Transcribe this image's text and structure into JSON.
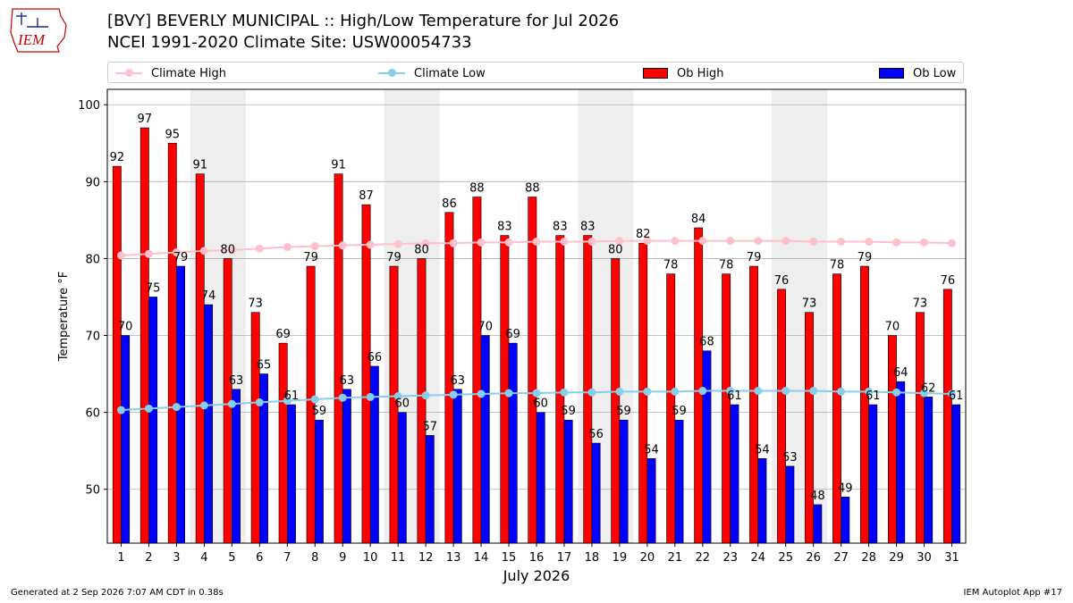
{
  "header": {
    "title_line1": "[BVY] BEVERLY MUNICIPAL :: High/Low Temperature for Jul 2026",
    "title_line2": "NCEI 1991-2020 Climate Site: USW00054733"
  },
  "logo": {
    "text": "IEM",
    "color": "#cc0000"
  },
  "legend": {
    "climate_high": "Climate High",
    "climate_low": "Climate Low",
    "ob_high": "Ob High",
    "ob_low": "Ob Low"
  },
  "footer": {
    "left": "Generated at 2 Sep 2026 7:07 AM CDT in 0.38s",
    "right": "IEM Autoplot App #17"
  },
  "colors": {
    "ob_high": "#ff0000",
    "ob_low": "#0000ff",
    "climate_high": "#ffc0cb",
    "climate_low": "#87ceeb",
    "weekend_band": "#eeeeee",
    "grid": "#b0b0b0"
  },
  "chart_data": {
    "type": "bar",
    "xlabel": "July 2026",
    "ylabel": "Temperature °F",
    "ylim": [
      43,
      102
    ],
    "yticks": [
      50,
      60,
      70,
      80,
      90,
      100
    ],
    "grid": "horizontal",
    "legend_position": "top",
    "categories": [
      1,
      2,
      3,
      4,
      5,
      6,
      7,
      8,
      9,
      10,
      11,
      12,
      13,
      14,
      15,
      16,
      17,
      18,
      19,
      20,
      21,
      22,
      23,
      24,
      25,
      26,
      27,
      28,
      29,
      30,
      31
    ],
    "weekend_bands": [
      [
        4,
        5
      ],
      [
        11,
        12
      ],
      [
        18,
        19
      ],
      [
        25,
        26
      ]
    ],
    "series": [
      {
        "name": "Ob High",
        "kind": "bar",
        "values": [
          92,
          97,
          95,
          91,
          80,
          73,
          69,
          79,
          91,
          87,
          79,
          80,
          86,
          88,
          83,
          88,
          83,
          83,
          80,
          82,
          78,
          84,
          78,
          79,
          76,
          73,
          78,
          79,
          70,
          73,
          76
        ]
      },
      {
        "name": "Ob Low",
        "kind": "bar",
        "values": [
          70,
          75,
          79,
          74,
          63,
          65,
          61,
          59,
          63,
          66,
          60,
          57,
          63,
          70,
          69,
          60,
          59,
          56,
          59,
          54,
          59,
          68,
          61,
          54,
          53,
          48,
          49,
          61,
          64,
          62,
          61
        ]
      },
      {
        "name": "Climate High",
        "kind": "line",
        "values": [
          80.4,
          80.6,
          80.8,
          81.0,
          81.1,
          81.3,
          81.5,
          81.6,
          81.7,
          81.8,
          81.9,
          82.0,
          82.0,
          82.1,
          82.1,
          82.2,
          82.2,
          82.2,
          82.3,
          82.3,
          82.3,
          82.3,
          82.3,
          82.3,
          82.3,
          82.2,
          82.2,
          82.2,
          82.1,
          82.1,
          82.0
        ]
      },
      {
        "name": "Climate Low",
        "kind": "line",
        "values": [
          60.3,
          60.5,
          60.7,
          60.9,
          61.1,
          61.3,
          61.5,
          61.7,
          61.9,
          62.0,
          62.1,
          62.2,
          62.3,
          62.4,
          62.5,
          62.5,
          62.6,
          62.6,
          62.7,
          62.7,
          62.7,
          62.8,
          62.8,
          62.8,
          62.8,
          62.8,
          62.7,
          62.7,
          62.6,
          62.5,
          62.4
        ]
      }
    ]
  }
}
